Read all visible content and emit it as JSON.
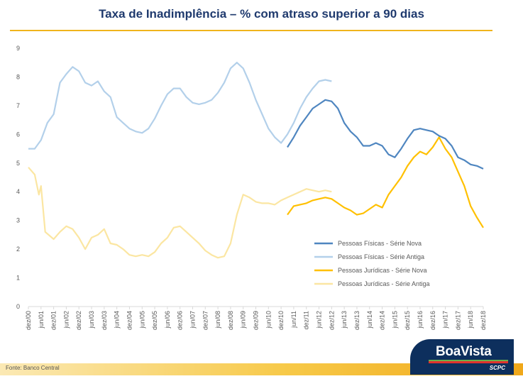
{
  "title": "Taxa de Inadimplência – % com atraso superior a 90 dias",
  "source": "Fonte: Banco Central",
  "logo": {
    "name": "BoaVista",
    "sub": "SCPC"
  },
  "chart_data": {
    "type": "line",
    "title": "Taxa de Inadimplência – % com atraso superior a 90 dias",
    "xlabel": "",
    "ylabel": "",
    "ylim": [
      0,
      9
    ],
    "yticks": [
      0,
      1,
      2,
      3,
      4,
      5,
      6,
      7,
      8,
      9
    ],
    "xlim": [
      "2000-12",
      "2018-12"
    ],
    "xticks": [
      "dez/00",
      "jun/01",
      "dez/01",
      "jun/02",
      "dez/02",
      "jun/03",
      "dez/03",
      "jun/04",
      "dez/04",
      "jun/05",
      "dez/05",
      "jun/06",
      "dez/06",
      "jun/07",
      "dez/07",
      "jun/08",
      "dez/08",
      "jun/09",
      "dez/09",
      "jun/10",
      "dez/10",
      "jun/11",
      "dez/11",
      "jun/12",
      "dez/12",
      "jun/13",
      "dez/13",
      "jun/14",
      "dez/14",
      "jun/15",
      "dez/15",
      "jun/16",
      "dez/16",
      "jun/17",
      "dez/17",
      "jun/18",
      "dez/18"
    ],
    "grid": false,
    "legend_position": "right",
    "series": [
      {
        "name": "Pessoas Físicas - Série Nova",
        "color": "#4f86c0",
        "points": [
          [
            "2011-03",
            5.55
          ],
          [
            "2011-06",
            5.9
          ],
          [
            "2011-09",
            6.3
          ],
          [
            "2011-12",
            6.6
          ],
          [
            "2012-03",
            6.9
          ],
          [
            "2012-06",
            7.05
          ],
          [
            "2012-09",
            7.2
          ],
          [
            "2012-12",
            7.15
          ],
          [
            "2013-03",
            6.9
          ],
          [
            "2013-06",
            6.4
          ],
          [
            "2013-09",
            6.1
          ],
          [
            "2013-12",
            5.9
          ],
          [
            "2014-03",
            5.6
          ],
          [
            "2014-06",
            5.6
          ],
          [
            "2014-09",
            5.7
          ],
          [
            "2014-12",
            5.6
          ],
          [
            "2015-03",
            5.3
          ],
          [
            "2015-06",
            5.2
          ],
          [
            "2015-09",
            5.5
          ],
          [
            "2015-12",
            5.85
          ],
          [
            "2016-03",
            6.15
          ],
          [
            "2016-06",
            6.2
          ],
          [
            "2016-09",
            6.15
          ],
          [
            "2016-12",
            6.1
          ],
          [
            "2017-03",
            5.95
          ],
          [
            "2017-06",
            5.85
          ],
          [
            "2017-09",
            5.6
          ],
          [
            "2017-12",
            5.2
          ],
          [
            "2018-03",
            5.1
          ],
          [
            "2018-06",
            4.95
          ],
          [
            "2018-09",
            4.9
          ],
          [
            "2018-12",
            4.8
          ]
        ]
      },
      {
        "name": "Pessoas Físicas - Série Antiga",
        "color": "#b3d0ea",
        "points": [
          [
            "2000-12",
            5.5
          ],
          [
            "2001-03",
            5.5
          ],
          [
            "2001-06",
            5.8
          ],
          [
            "2001-09",
            6.4
          ],
          [
            "2001-12",
            6.7
          ],
          [
            "2002-03",
            7.8
          ],
          [
            "2002-06",
            8.1
          ],
          [
            "2002-09",
            8.35
          ],
          [
            "2002-12",
            8.2
          ],
          [
            "2003-03",
            7.8
          ],
          [
            "2003-06",
            7.7
          ],
          [
            "2003-09",
            7.85
          ],
          [
            "2003-12",
            7.5
          ],
          [
            "2004-03",
            7.3
          ],
          [
            "2004-06",
            6.6
          ],
          [
            "2004-09",
            6.4
          ],
          [
            "2004-12",
            6.2
          ],
          [
            "2005-03",
            6.1
          ],
          [
            "2005-06",
            6.05
          ],
          [
            "2005-09",
            6.2
          ],
          [
            "2005-12",
            6.55
          ],
          [
            "2006-03",
            7.0
          ],
          [
            "2006-06",
            7.4
          ],
          [
            "2006-09",
            7.6
          ],
          [
            "2006-12",
            7.6
          ],
          [
            "2007-03",
            7.3
          ],
          [
            "2007-06",
            7.1
          ],
          [
            "2007-09",
            7.05
          ],
          [
            "2007-12",
            7.1
          ],
          [
            "2008-03",
            7.2
          ],
          [
            "2008-06",
            7.45
          ],
          [
            "2008-09",
            7.8
          ],
          [
            "2008-12",
            8.3
          ],
          [
            "2009-03",
            8.5
          ],
          [
            "2009-06",
            8.3
          ],
          [
            "2009-09",
            7.8
          ],
          [
            "2009-12",
            7.2
          ],
          [
            "2010-03",
            6.7
          ],
          [
            "2010-06",
            6.2
          ],
          [
            "2010-09",
            5.9
          ],
          [
            "2010-12",
            5.7
          ],
          [
            "2011-03",
            6.0
          ],
          [
            "2011-06",
            6.4
          ],
          [
            "2011-09",
            6.9
          ],
          [
            "2011-12",
            7.3
          ],
          [
            "2012-03",
            7.6
          ],
          [
            "2012-06",
            7.85
          ],
          [
            "2012-09",
            7.9
          ],
          [
            "2012-12",
            7.85
          ]
        ]
      },
      {
        "name": "Pessoas Jurídicas - Série Nova",
        "color": "#ffc000",
        "points": [
          [
            "2011-03",
            3.2
          ],
          [
            "2011-06",
            3.5
          ],
          [
            "2011-09",
            3.55
          ],
          [
            "2011-12",
            3.6
          ],
          [
            "2012-03",
            3.7
          ],
          [
            "2012-06",
            3.75
          ],
          [
            "2012-09",
            3.8
          ],
          [
            "2012-12",
            3.75
          ],
          [
            "2013-03",
            3.6
          ],
          [
            "2013-06",
            3.45
          ],
          [
            "2013-09",
            3.35
          ],
          [
            "2013-12",
            3.2
          ],
          [
            "2014-03",
            3.25
          ],
          [
            "2014-06",
            3.4
          ],
          [
            "2014-09",
            3.55
          ],
          [
            "2014-12",
            3.45
          ],
          [
            "2015-03",
            3.9
          ],
          [
            "2015-06",
            4.2
          ],
          [
            "2015-09",
            4.5
          ],
          [
            "2015-12",
            4.9
          ],
          [
            "2016-03",
            5.2
          ],
          [
            "2016-06",
            5.4
          ],
          [
            "2016-09",
            5.3
          ],
          [
            "2016-12",
            5.55
          ],
          [
            "2017-03",
            5.9
          ],
          [
            "2017-06",
            5.5
          ],
          [
            "2017-09",
            5.2
          ],
          [
            "2017-12",
            4.7
          ],
          [
            "2018-03",
            4.2
          ],
          [
            "2018-06",
            3.5
          ],
          [
            "2018-09",
            3.1
          ],
          [
            "2018-12",
            2.75
          ]
        ]
      },
      {
        "name": "Pessoas Jurídicas - Série Antiga",
        "color": "#fbe6a2",
        "points": [
          [
            "2000-12",
            4.85
          ],
          [
            "2001-03",
            4.6
          ],
          [
            "2001-05",
            3.9
          ],
          [
            "2001-06",
            4.2
          ],
          [
            "2001-08",
            2.6
          ],
          [
            "2001-12",
            2.35
          ],
          [
            "2002-03",
            2.6
          ],
          [
            "2002-06",
            2.8
          ],
          [
            "2002-09",
            2.7
          ],
          [
            "2002-12",
            2.4
          ],
          [
            "2003-03",
            2.0
          ],
          [
            "2003-06",
            2.4
          ],
          [
            "2003-09",
            2.5
          ],
          [
            "2003-12",
            2.7
          ],
          [
            "2004-03",
            2.2
          ],
          [
            "2004-06",
            2.15
          ],
          [
            "2004-09",
            2.0
          ],
          [
            "2004-12",
            1.8
          ],
          [
            "2005-03",
            1.75
          ],
          [
            "2005-06",
            1.8
          ],
          [
            "2005-09",
            1.75
          ],
          [
            "2005-12",
            1.9
          ],
          [
            "2006-03",
            2.2
          ],
          [
            "2006-06",
            2.4
          ],
          [
            "2006-09",
            2.75
          ],
          [
            "2006-12",
            2.8
          ],
          [
            "2007-03",
            2.6
          ],
          [
            "2007-06",
            2.4
          ],
          [
            "2007-09",
            2.2
          ],
          [
            "2007-12",
            1.95
          ],
          [
            "2008-03",
            1.8
          ],
          [
            "2008-06",
            1.7
          ],
          [
            "2008-09",
            1.75
          ],
          [
            "2008-12",
            2.2
          ],
          [
            "2009-03",
            3.2
          ],
          [
            "2009-06",
            3.9
          ],
          [
            "2009-09",
            3.8
          ],
          [
            "2009-12",
            3.65
          ],
          [
            "2010-03",
            3.6
          ],
          [
            "2010-06",
            3.6
          ],
          [
            "2010-09",
            3.55
          ],
          [
            "2010-12",
            3.7
          ],
          [
            "2011-03",
            3.8
          ],
          [
            "2011-06",
            3.9
          ],
          [
            "2011-09",
            4.0
          ],
          [
            "2011-12",
            4.1
          ],
          [
            "2012-03",
            4.05
          ],
          [
            "2012-06",
            4.0
          ],
          [
            "2012-09",
            4.05
          ],
          [
            "2012-12",
            4.0
          ]
        ]
      }
    ]
  }
}
